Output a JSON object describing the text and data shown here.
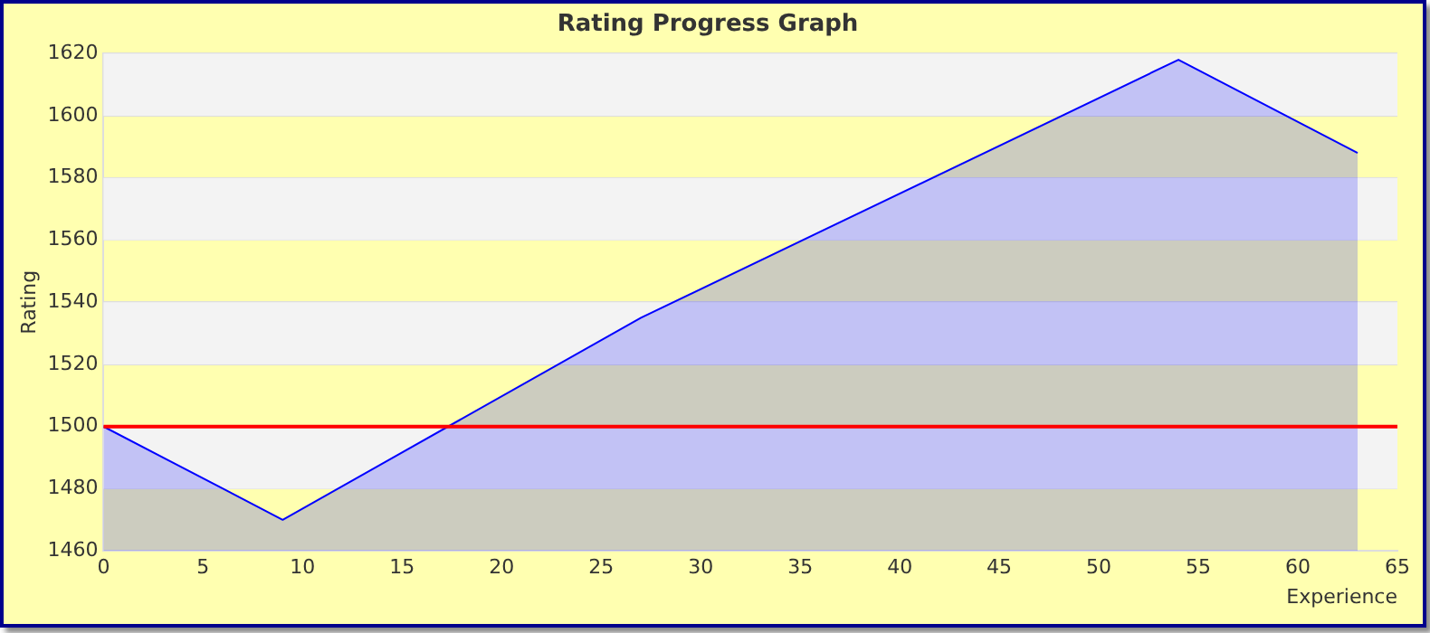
{
  "chart_data": {
    "type": "area",
    "title": "Rating Progress Graph",
    "xlabel": "Experience",
    "ylabel": "Rating",
    "x": [
      0,
      9,
      27,
      54,
      63
    ],
    "series": [
      {
        "color": "#0000ff",
        "values": [
          1500,
          1470,
          1535,
          1618,
          1588
        ]
      }
    ],
    "xlim": [
      0,
      65
    ],
    "xticks": [
      0,
      5,
      10,
      15,
      20,
      25,
      30,
      35,
      40,
      45,
      50,
      55,
      60,
      65
    ],
    "ylim": [
      1460,
      1620
    ],
    "yticks": [
      1460,
      1480,
      1500,
      1520,
      1540,
      1560,
      1580,
      1600,
      1620
    ],
    "ref_lines": [
      {
        "axis": "y",
        "value": 1500,
        "color": "#ff0000"
      }
    ],
    "grid": "y",
    "legend": false,
    "marker": "none",
    "line_style": "solid"
  }
}
